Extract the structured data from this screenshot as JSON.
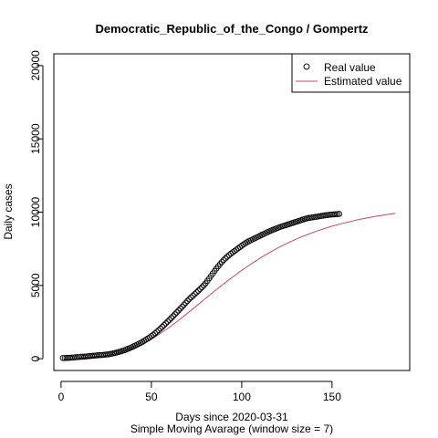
{
  "chart_data": {
    "type": "line",
    "title": "Democratic_Republic_of_the_Congo / Gompertz",
    "xlabel": "Days since 2020-03-31",
    "xlabel2": "Simple Moving Avarage (window size = 7)",
    "ylabel": "Daily cases",
    "xlim": [
      -4,
      193
    ],
    "ylim": [
      -800,
      20800
    ],
    "xticks": [
      0,
      50,
      100,
      150
    ],
    "yticks": [
      0,
      5000,
      10000,
      15000,
      20000
    ],
    "legend": {
      "position": "top-right",
      "entries": [
        "Real value",
        "Estimated value"
      ]
    },
    "series": [
      {
        "name": "Real value",
        "marker": "open-circle",
        "color": "#000000",
        "x_start": 1,
        "x_end": 154,
        "values": [
          50,
          52,
          55,
          60,
          68,
          78,
          90,
          100,
          110,
          120,
          130,
          140,
          150,
          160,
          172,
          185,
          198,
          210,
          222,
          233,
          243,
          252,
          262,
          273,
          286,
          300,
          320,
          345,
          372,
          400,
          432,
          466,
          502,
          540,
          580,
          625,
          675,
          725,
          780,
          840,
          900,
          960,
          1020,
          1085,
          1150,
          1225,
          1300,
          1380,
          1460,
          1550,
          1640,
          1735,
          1840,
          1950,
          2060,
          2175,
          2290,
          2410,
          2530,
          2650,
          2775,
          2900,
          3030,
          3160,
          3290,
          3420,
          3550,
          3680,
          3810,
          3940,
          4070,
          4190,
          4300,
          4420,
          4530,
          4640,
          4760,
          4880,
          5010,
          5150,
          5310,
          5480,
          5650,
          5820,
          5990,
          6150,
          6310,
          6460,
          6600,
          6730,
          6850,
          6960,
          7070,
          7170,
          7260,
          7350,
          7440,
          7530,
          7620,
          7710,
          7800,
          7880,
          7950,
          8020,
          8080,
          8140,
          8200,
          8260,
          8320,
          8380,
          8440,
          8500,
          8560,
          8620,
          8680,
          8730,
          8780,
          8830,
          8880,
          8930,
          8980,
          9020,
          9060,
          9100,
          9140,
          9180,
          9220,
          9260,
          9300,
          9340,
          9380,
          9420,
          9460,
          9500,
          9540,
          9570,
          9600,
          9620,
          9640,
          9660,
          9680,
          9700,
          9720,
          9740,
          9760,
          9780,
          9800,
          9815,
          9830,
          9840,
          9850,
          9860,
          9870,
          9880
        ]
      },
      {
        "name": "Estimated value",
        "style": "line",
        "color": "#c2467a",
        "points": [
          [
            10,
            40
          ],
          [
            15,
            60
          ],
          [
            20,
            110
          ],
          [
            25,
            200
          ],
          [
            30,
            330
          ],
          [
            35,
            500
          ],
          [
            40,
            720
          ],
          [
            45,
            1000
          ],
          [
            50,
            1330
          ],
          [
            55,
            1720
          ],
          [
            60,
            2150
          ],
          [
            65,
            2620
          ],
          [
            70,
            3110
          ],
          [
            75,
            3610
          ],
          [
            80,
            4120
          ],
          [
            85,
            4620
          ],
          [
            90,
            5110
          ],
          [
            95,
            5580
          ],
          [
            100,
            6030
          ],
          [
            105,
            6450
          ],
          [
            110,
            6850
          ],
          [
            115,
            7220
          ],
          [
            120,
            7560
          ],
          [
            125,
            7870
          ],
          [
            130,
            8150
          ],
          [
            135,
            8410
          ],
          [
            140,
            8640
          ],
          [
            145,
            8850
          ],
          [
            150,
            9040
          ],
          [
            155,
            9210
          ],
          [
            160,
            9360
          ],
          [
            165,
            9500
          ],
          [
            170,
            9620
          ],
          [
            175,
            9730
          ],
          [
            180,
            9830
          ],
          [
            185,
            9920
          ]
        ]
      }
    ]
  }
}
